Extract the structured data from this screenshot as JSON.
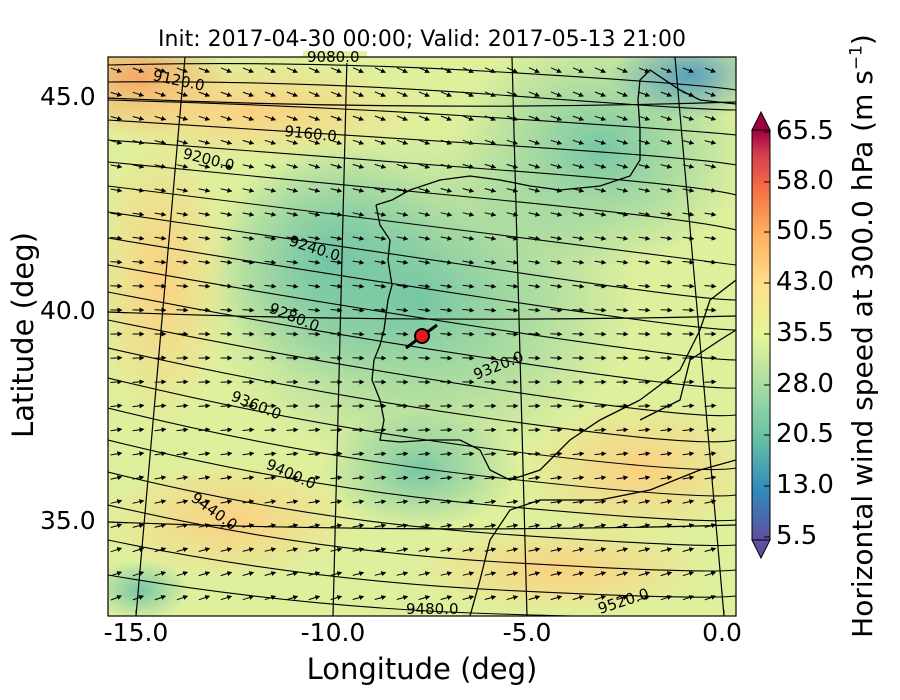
{
  "title": "Init: 2017-04-30 00:00; Valid: 2017-05-13 21:00",
  "xlabel": "Longitude (deg)",
  "ylabel": "Latitude (deg)",
  "x_ticks": [
    "-15.0",
    "-10.0",
    "-5.0",
    "0.0"
  ],
  "y_ticks": [
    "45.0",
    "40.0",
    "35.0"
  ],
  "colorbar": {
    "label": "Horizontal wind speed at 300.0 hPa (m s",
    "label_sup": "−1",
    "label_end": ")",
    "ticks": [
      "65.5",
      "58.0",
      "50.5",
      "43.0",
      "35.5",
      "28.0",
      "20.5",
      "13.0",
      "5.5"
    ],
    "range": [
      5.5,
      65.5
    ],
    "colors": [
      "#5e4fa2",
      "#3288bd",
      "#66c2a5",
      "#abdda4",
      "#e6f598",
      "#fee08b",
      "#fdae61",
      "#f46d43",
      "#d53e4f",
      "#9e0142"
    ]
  },
  "contour_labels": [
    "9080.0",
    "9120.0",
    "9160.0",
    "9200.0",
    "9240.0",
    "9280.0",
    "9320.0",
    "9360.0",
    "9400.0",
    "9440.0",
    "9480.0",
    "9520.0"
  ],
  "chart_data": {
    "type": "map",
    "title": "Init: 2017-04-30 00:00; Valid: 2017-05-13 21:00",
    "xlabel": "Longitude (deg)",
    "ylabel": "Latitude (deg)",
    "xlim": [
      -16,
      0
    ],
    "ylim": [
      32.5,
      46
    ],
    "field": "Horizontal wind speed at 300.0 hPa",
    "units": "m s-1",
    "colorbar_range": [
      5.5,
      65.5
    ],
    "geopotential_contours": [
      9080,
      9120,
      9160,
      9200,
      9240,
      9280,
      9320,
      9360,
      9400,
      9440,
      9480,
      9520
    ],
    "marker": {
      "lon": -7.6,
      "lat": 39.3,
      "color": "red"
    }
  }
}
